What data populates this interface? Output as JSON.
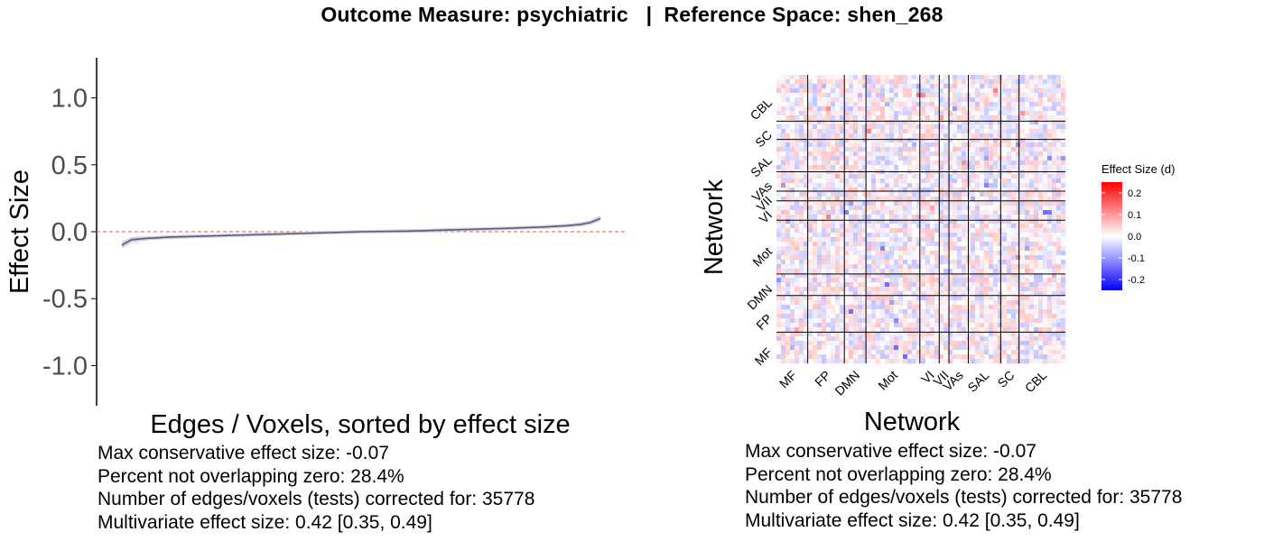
{
  "title": "Outcome Measure: psychiatric   |  Reference Space: shen_268",
  "chart_data": [
    {
      "type": "line",
      "panel": "left",
      "xlabel": "Edges / Voxels, sorted by effect size",
      "ylabel": "Effect Size",
      "ylim": [
        -1.3,
        1.3
      ],
      "yticks": [
        1.0,
        0.5,
        0.0,
        -0.5,
        -1.0
      ],
      "ytick_labels": [
        "1.0",
        "0.5",
        "0.0",
        "-0.5",
        "-1.0"
      ],
      "reference_line": {
        "y": 0.0,
        "style": "dashed",
        "color": "#e07a6a"
      },
      "x_fraction": [
        0.0,
        0.02,
        0.05,
        0.1,
        0.2,
        0.3,
        0.4,
        0.5,
        0.6,
        0.7,
        0.8,
        0.88,
        0.93,
        0.96,
        0.98,
        1.0
      ],
      "y_estimate": [
        -0.1,
        -0.06,
        -0.05,
        -0.04,
        -0.03,
        -0.02,
        -0.01,
        0.0,
        0.005,
        0.015,
        0.025,
        0.035,
        0.045,
        0.055,
        0.07,
        0.1
      ],
      "ci_half_width": [
        0.025,
        0.02,
        0.015,
        0.014,
        0.013,
        0.013,
        0.013,
        0.013,
        0.013,
        0.013,
        0.013,
        0.013,
        0.014,
        0.015,
        0.017,
        0.02
      ],
      "line_color": "#5c5c78",
      "band_color": "#c8c8dc"
    },
    {
      "type": "heatmap",
      "panel": "right",
      "xlabel": "Network",
      "ylabel": "Network",
      "networks": [
        "MF",
        "FP",
        "DMN",
        "Mot",
        "VI",
        "VII",
        "VAs",
        "SAL",
        "SC",
        "CBL"
      ],
      "network_sizes": [
        29,
        34,
        20,
        50,
        18,
        9,
        18,
        30,
        17,
        43
      ],
      "legend_title": "Effect Size (d)",
      "legend_ticks": [
        0.2,
        0.1,
        0.0,
        -0.1,
        -0.2
      ],
      "legend_tick_labels": [
        "0.2",
        "0.1",
        "0.0",
        "-0.1",
        "-0.2"
      ],
      "value_range": [
        -0.25,
        0.25
      ],
      "colors": {
        "low": "#0000ff",
        "mid": "#ffffff",
        "high": "#ff0000"
      }
    }
  ],
  "left_stats": {
    "max_effect": "Max conservative effect size: -0.07",
    "percent": "Percent not overlapping zero: 28.4%",
    "num_tests": "Number of edges/voxels (tests) corrected for: 35778",
    "multivariate": "Multivariate effect size: 0.42 [0.35, 0.49]"
  },
  "right_stats": {
    "max_effect": "Max conservative effect size: -0.07",
    "percent": "Percent not overlapping zero: 28.4%",
    "num_tests": "Number of edges/voxels (tests) corrected for: 35778",
    "multivariate": "Multivariate effect size: 0.42 [0.35, 0.49]"
  }
}
